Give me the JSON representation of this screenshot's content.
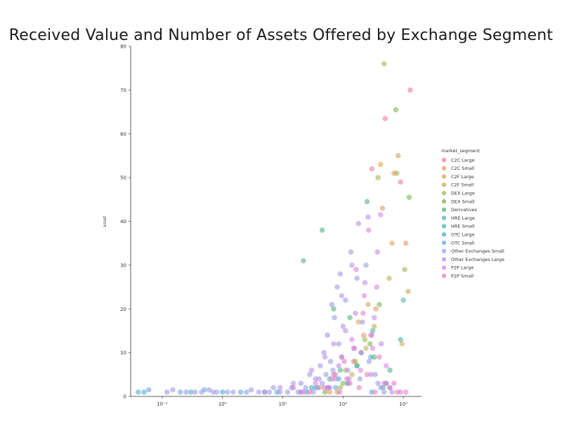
{
  "chart_data": {
    "type": "scatter",
    "title": "Received Value and Number of Assets Offered by Exchange Segment",
    "ylabel": "asset",
    "xlabel": "",
    "xscale": "log",
    "xlim": [
      0.03,
      2000
    ],
    "ylim": [
      0,
      80
    ],
    "x_ticks": [
      0.1,
      1,
      10,
      100,
      1000
    ],
    "x_tick_labels": [
      "10⁻¹",
      "10⁰",
      "10¹",
      "10²",
      "10³"
    ],
    "y_ticks": [
      0,
      10,
      20,
      30,
      40,
      50,
      60,
      70,
      80
    ],
    "y_tick_labels": [
      "0",
      "10",
      "20",
      "30",
      "40",
      "50",
      "60",
      "70",
      "80"
    ],
    "grid": false,
    "legend": {
      "title": "market_segment",
      "placement": "right",
      "entries": [
        {
          "name": "C2C Large",
          "color": "#f07fa0"
        },
        {
          "name": "C2C Small",
          "color": "#e89a6a"
        },
        {
          "name": "C2F Large",
          "color": "#d8a85a"
        },
        {
          "name": "C2F Small",
          "color": "#c4ae58"
        },
        {
          "name": "DEX Large",
          "color": "#a8b455"
        },
        {
          "name": "DEX Small",
          "color": "#7fb556"
        },
        {
          "name": "Derivatives",
          "color": "#55b87e"
        },
        {
          "name": "HRE Large",
          "color": "#4db8a4"
        },
        {
          "name": "HRE Small",
          "color": "#4bb6b8"
        },
        {
          "name": "OTC Large",
          "color": "#52b0cc"
        },
        {
          "name": "OTC Small",
          "color": "#6aa8de"
        },
        {
          "name": "Other Exchanges Small",
          "color": "#9d9de8"
        },
        {
          "name": "Other Exchanges Large",
          "color": "#c08ee6"
        },
        {
          "name": "P2P Large",
          "color": "#df84dc"
        },
        {
          "name": "P2P Small",
          "color": "#ee7fc6"
        }
      ]
    },
    "series": [
      {
        "name": "C2C Large",
        "x": [
          15,
          70,
          150,
          300,
          500,
          900,
          1300
        ],
        "y": [
          2,
          5,
          8,
          52,
          63.5,
          49,
          70
        ]
      },
      {
        "name": "C2C Small",
        "x": [
          60,
          120,
          220,
          350,
          450,
          700,
          1100
        ],
        "y": [
          1,
          3,
          14,
          20,
          43,
          51,
          35
        ]
      },
      {
        "name": "C2F Large",
        "x": [
          40,
          110,
          180,
          260,
          420,
          650,
          950
        ],
        "y": [
          2,
          6,
          17,
          21,
          53,
          35,
          12
        ]
      },
      {
        "name": "C2F Small",
        "x": [
          80,
          140,
          240,
          330,
          580,
          820,
          1200
        ],
        "y": [
          1,
          5,
          11,
          16,
          27,
          55,
          24
        ]
      },
      {
        "name": "DEX Large",
        "x": [
          90,
          160,
          230,
          380,
          480,
          780,
          1050
        ],
        "y": [
          2,
          8,
          13,
          50,
          76,
          51,
          29
        ]
      },
      {
        "name": "DEX Small",
        "x": [
          50,
          100,
          170,
          280,
          400,
          750,
          1250
        ],
        "y": [
          1,
          3,
          7,
          12,
          21,
          65.5,
          45.5
        ]
      },
      {
        "name": "Derivatives",
        "x": [
          22,
          45,
          70,
          130,
          250,
          330,
          600
        ],
        "y": [
          31,
          38,
          20,
          18,
          44.5,
          9,
          6
        ]
      },
      {
        "name": "HRE Large",
        "x": [
          30,
          60,
          90,
          200,
          310,
          520,
          900
        ],
        "y": [
          2,
          4,
          6,
          10,
          15,
          3,
          13
        ]
      },
      {
        "name": "HRE Small",
        "x": [
          25,
          55,
          85,
          170,
          290,
          460,
          1000
        ],
        "y": [
          1,
          2,
          4,
          7,
          9,
          2,
          22
        ]
      },
      {
        "name": "OTC Large",
        "x": [
          0.04,
          0.05,
          0.3,
          1,
          8,
          35,
          120,
          600
        ],
        "y": [
          1,
          1,
          1,
          1,
          1,
          2,
          3,
          2
        ]
      },
      {
        "name": "OTC Small",
        "x": [
          0.06,
          0.2,
          0.5,
          2,
          5,
          20,
          75,
          300
        ],
        "y": [
          1.5,
          1,
          1.5,
          1,
          1,
          1,
          2,
          1
        ]
      },
      {
        "name": "Other Exchanges Small",
        "x": [
          0.12,
          0.15,
          0.25,
          0.35,
          0.45,
          0.6,
          0.7,
          0.8,
          1.2,
          1.5,
          2.5,
          3,
          4,
          6,
          7,
          9,
          12,
          14,
          18,
          20,
          24,
          28,
          32,
          35,
          38,
          42,
          45,
          48,
          52,
          55,
          58,
          62,
          65,
          68,
          72,
          75,
          80,
          85,
          90,
          95,
          100,
          110,
          120,
          135,
          150,
          170,
          190,
          210,
          240,
          270,
          300,
          340,
          380,
          420,
          480
        ],
        "y": [
          1,
          1.5,
          1,
          1,
          1,
          1.5,
          1,
          1,
          1,
          1,
          1,
          1.5,
          1,
          1,
          2,
          1,
          1,
          2,
          1,
          3,
          2,
          5,
          1,
          4,
          2,
          7,
          3,
          10,
          5,
          14,
          2,
          8,
          21,
          6,
          18,
          4,
          25,
          12,
          28,
          9,
          16,
          22,
          6,
          33,
          11,
          27,
          4,
          17,
          30,
          8,
          14,
          5,
          3,
          2,
          1
        ]
      },
      {
        "name": "Other Exchanges Large",
        "x": [
          5,
          9,
          15,
          22,
          30,
          40,
          50,
          60,
          70,
          85,
          95,
          110,
          125,
          140,
          160,
          180,
          200,
          230,
          260,
          290,
          330,
          370,
          430,
          520,
          650
        ],
        "y": [
          1,
          2,
          3,
          1,
          6,
          4,
          9,
          2,
          12,
          7,
          23,
          15,
          4,
          30,
          19,
          39.5,
          10,
          26,
          41,
          5,
          18,
          33,
          12,
          3,
          1
        ]
      },
      {
        "name": "P2P Large",
        "x": [
          20,
          35,
          55,
          75,
          95,
          115,
          140,
          165,
          195,
          225,
          265,
          310,
          360,
          420,
          520,
          700,
          900
        ],
        "y": [
          1,
          3,
          2,
          5,
          9,
          4,
          13,
          29,
          6,
          23,
          38,
          11,
          25,
          41.5,
          7,
          3,
          1
        ]
      },
      {
        "name": "P2P Small",
        "x": [
          28,
          48,
          66,
          88,
          105,
          130,
          155,
          185,
          215,
          250,
          290,
          340,
          400,
          480,
          600,
          800,
          1100
        ],
        "y": [
          1,
          2,
          4,
          1,
          8,
          3,
          11,
          2,
          19,
          5,
          14,
          1,
          9,
          3,
          2,
          1,
          1
        ]
      }
    ]
  }
}
